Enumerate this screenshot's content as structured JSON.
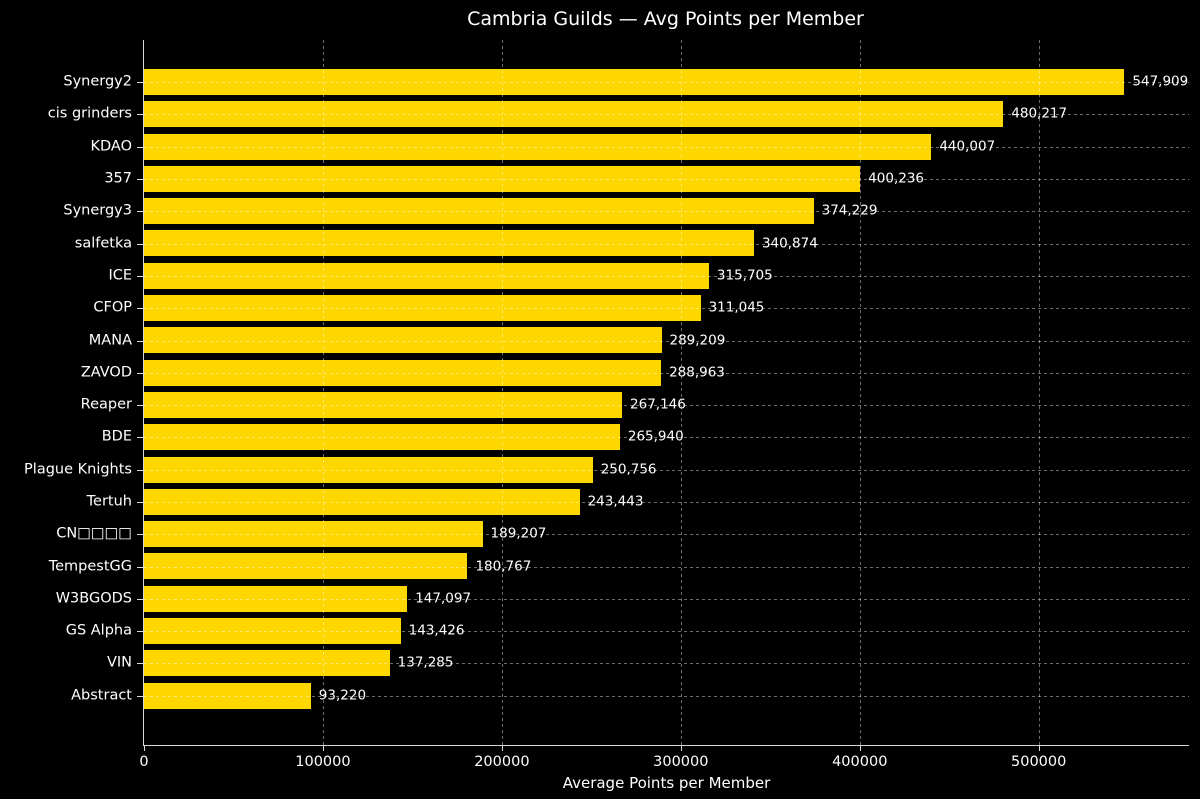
{
  "title": "Cambria Guilds — Avg Points per Member",
  "colors": {
    "background": "#000000",
    "bar": "#FFD700",
    "text": "#ffffff",
    "grid": "rgba(255,255,255,0.42)",
    "axis": "#d9d9d9"
  },
  "chart_data": {
    "type": "bar",
    "orientation": "horizontal",
    "title": "Cambria Guilds — Avg Points per Member",
    "xlabel": "Average Points per Member",
    "ylabel": "",
    "categories": [
      "Synergy2",
      "cis grinders",
      "KDAO",
      "357",
      "Synergy3",
      "salfetka",
      "ICE",
      "CFOP",
      "MANA",
      "ZAVOD",
      "Reaper",
      "BDE",
      "Plague Knights",
      "Tertuh",
      "CN□□□□",
      "TempestGG",
      "W3BGODS",
      "GS Alpha",
      "VIN",
      "Abstract"
    ],
    "values": [
      547909,
      480217,
      440007,
      400236,
      374229,
      340874,
      315705,
      311045,
      289209,
      288963,
      267146,
      265940,
      250756,
      243443,
      189207,
      180767,
      147097,
      143426,
      137285,
      93220
    ],
    "value_labels": [
      "547,909",
      "480,217",
      "440,007",
      "400,236",
      "374,229",
      "340,874",
      "315,705",
      "311,045",
      "289,209",
      "288,963",
      "267,146",
      "265,940",
      "250,756",
      "243,443",
      "189,207",
      "180,767",
      "147,097",
      "143,426",
      "137,285",
      "93,220"
    ],
    "x_ticks": [
      0,
      100000,
      200000,
      300000,
      400000,
      500000
    ],
    "x_tick_labels": [
      "0",
      "100000",
      "200000",
      "300000",
      "400000",
      "500000"
    ],
    "xlim": [
      0,
      584000
    ],
    "grid": "dashed",
    "grid_over_bars": true,
    "legend": "none",
    "bar_color": "#FFD700"
  }
}
